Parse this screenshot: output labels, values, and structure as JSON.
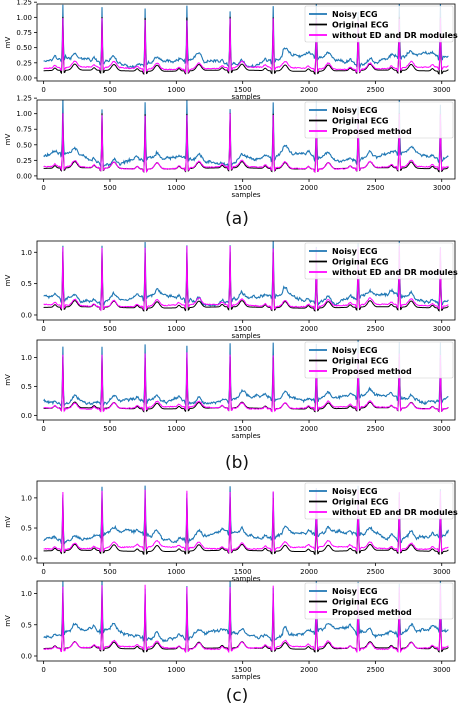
{
  "colors": {
    "noisy": "#1f77b4",
    "original": "#000000",
    "method": "#ff00ff",
    "axis": "#000000",
    "legend_border": "#cccccc",
    "background": "#ffffff"
  },
  "group_labels": [
    "(a)",
    "(b)",
    "(c)"
  ],
  "chart_data": [
    {
      "type": "line",
      "group": "(a)",
      "xlabel": "samples",
      "ylabel": "mV",
      "xlim": [
        -50,
        3100
      ],
      "ylim": [
        -0.05,
        1.22
      ],
      "xticks": [
        "0",
        "500",
        "1000",
        "1500",
        "2000",
        "2500",
        "3000"
      ],
      "yticks": [
        "0.00",
        "0.25",
        "0.50",
        "0.75",
        "1.00",
        "1.25"
      ],
      "legend_position": "top-right",
      "r_peaks": [
        145,
        440,
        765,
        1080,
        1405,
        1730,
        2055,
        2370,
        2680,
        2990
      ],
      "peak_heights": {
        "noisy": 1.15,
        "original": 1.0,
        "method": 0.97
      },
      "baselines": {
        "noisy": 0.27,
        "original": 0.12,
        "method": 0.16
      },
      "series": [
        {
          "name": "Noisy ECG",
          "color_key": "noisy"
        },
        {
          "name": "Original ECG",
          "color_key": "original"
        },
        {
          "name": "without ED and DR modules",
          "color_key": "method"
        }
      ]
    },
    {
      "type": "line",
      "group": "(a)",
      "xlabel": "samples",
      "ylabel": "mV",
      "xlim": [
        -50,
        3100
      ],
      "ylim": [
        -0.05,
        1.22
      ],
      "xticks": [
        "0",
        "500",
        "1000",
        "1500",
        "2000",
        "2500",
        "3000"
      ],
      "yticks": [
        "0.00",
        "0.25",
        "0.50",
        "0.75",
        "1.00",
        "1.25"
      ],
      "legend_position": "top-right",
      "r_peaks": [
        145,
        440,
        765,
        1080,
        1405,
        1730,
        2055,
        2370,
        2680,
        2990
      ],
      "peak_heights": {
        "noisy": 1.15,
        "original": 1.0,
        "method": 0.98
      },
      "baselines": {
        "noisy": 0.27,
        "original": 0.12,
        "method": 0.13
      },
      "series": [
        {
          "name": "Noisy ECG",
          "color_key": "noisy"
        },
        {
          "name": "Original ECG",
          "color_key": "original"
        },
        {
          "name": "Proposed method",
          "color_key": "method"
        }
      ]
    },
    {
      "type": "line",
      "group": "(b)",
      "xlabel": "samples",
      "ylabel": "mV",
      "xlim": [
        -50,
        3100
      ],
      "ylim": [
        -0.08,
        1.18
      ],
      "xticks": [
        "0",
        "500",
        "1000",
        "1500",
        "2000",
        "2500",
        "3000"
      ],
      "yticks": [
        "0.0",
        "0.5",
        "1.0"
      ],
      "legend_position": "top-right",
      "r_peaks": [
        145,
        440,
        765,
        1080,
        1405,
        1730,
        2055,
        2370,
        2680,
        2990
      ],
      "peak_heights": {
        "noisy": 1.12,
        "original": 1.0,
        "method": 1.08
      },
      "baselines": {
        "noisy": 0.25,
        "original": 0.12,
        "method": 0.15
      },
      "series": [
        {
          "name": "Noisy ECG",
          "color_key": "noisy"
        },
        {
          "name": "Original ECG",
          "color_key": "original"
        },
        {
          "name": "without ED and DR modules",
          "color_key": "method"
        }
      ]
    },
    {
      "type": "line",
      "group": "(b)",
      "xlabel": "samples",
      "ylabel": "mV",
      "xlim": [
        -50,
        3100
      ],
      "ylim": [
        -0.08,
        1.3
      ],
      "xticks": [
        "0",
        "500",
        "1000",
        "1500",
        "2000",
        "2500",
        "3000"
      ],
      "yticks": [
        "0.0",
        "0.5",
        "1.0"
      ],
      "legend_position": "top-right",
      "r_peaks": [
        145,
        440,
        765,
        1080,
        1405,
        1730,
        2055,
        2370,
        2680,
        2990
      ],
      "peak_heights": {
        "noisy": 1.22,
        "original": 1.0,
        "method": 1.06
      },
      "baselines": {
        "noisy": 0.25,
        "original": 0.12,
        "method": 0.13
      },
      "series": [
        {
          "name": "Noisy ECG",
          "color_key": "noisy"
        },
        {
          "name": "Original ECG",
          "color_key": "original"
        },
        {
          "name": "Proposed method",
          "color_key": "method"
        }
      ]
    },
    {
      "type": "line",
      "group": "(c)",
      "xlabel": "samples",
      "ylabel": "mV",
      "xlim": [
        -50,
        3100
      ],
      "ylim": [
        -0.08,
        1.28
      ],
      "xticks": [
        "0",
        "500",
        "1000",
        "1500",
        "2000",
        "2500",
        "3000"
      ],
      "yticks": [
        "0.0",
        "0.5",
        "1.0"
      ],
      "legend_position": "top-right",
      "r_peaks": [
        145,
        440,
        765,
        1080,
        1405,
        1730,
        2055,
        2370,
        2680,
        2990
      ],
      "peak_heights": {
        "noisy": 1.12,
        "original": 1.0,
        "method": 1.12
      },
      "baselines": {
        "noisy": 0.35,
        "original": 0.12,
        "method": 0.17
      },
      "series": [
        {
          "name": "Noisy ECG",
          "color_key": "noisy"
        },
        {
          "name": "Original ECG",
          "color_key": "original"
        },
        {
          "name": "without ED and DR modules",
          "color_key": "method"
        }
      ]
    },
    {
      "type": "line",
      "group": "(c)",
      "xlabel": "samples",
      "ylabel": "mV",
      "xlim": [
        -50,
        3100
      ],
      "ylim": [
        -0.08,
        1.2
      ],
      "xticks": [
        "0",
        "500",
        "1000",
        "1500",
        "2000",
        "2500",
        "3000"
      ],
      "yticks": [
        "0.0",
        "0.5",
        "1.0"
      ],
      "legend_position": "top-right",
      "r_peaks": [
        145,
        440,
        765,
        1080,
        1405,
        1730,
        2055,
        2370,
        2680,
        2990
      ],
      "peak_heights": {
        "noisy": 1.15,
        "original": 1.0,
        "method": 1.12
      },
      "baselines": {
        "noisy": 0.35,
        "original": 0.12,
        "method": 0.13
      },
      "series": [
        {
          "name": "Noisy ECG",
          "color_key": "noisy"
        },
        {
          "name": "Original ECG",
          "color_key": "original"
        },
        {
          "name": "Proposed method",
          "color_key": "method"
        }
      ]
    }
  ]
}
